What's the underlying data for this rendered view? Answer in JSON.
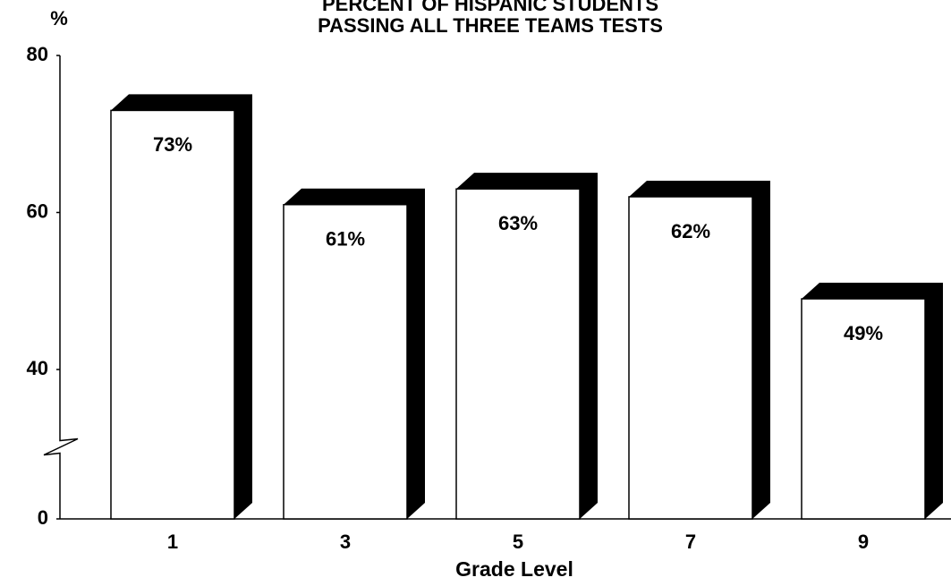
{
  "chart_data": {
    "type": "bar",
    "title": [
      "PERCENT OF HISPANIC STUDENTS",
      "PASSING ALL THREE TEAMS TESTS"
    ],
    "y_label": "%",
    "x_label": "Grade Level",
    "categories": [
      "1",
      "3",
      "5",
      "7",
      "9"
    ],
    "values": [
      73,
      61,
      63,
      62,
      49
    ],
    "value_labels": [
      "73%",
      "61%",
      "63%",
      "62%",
      "49%"
    ],
    "color": "#ffffff",
    "shadow_color": "#000000",
    "ylim": [
      0,
      80
    ],
    "yticks": [
      0,
      40,
      60,
      80
    ],
    "axis_break": [
      0,
      40
    ],
    "grid": false
  }
}
